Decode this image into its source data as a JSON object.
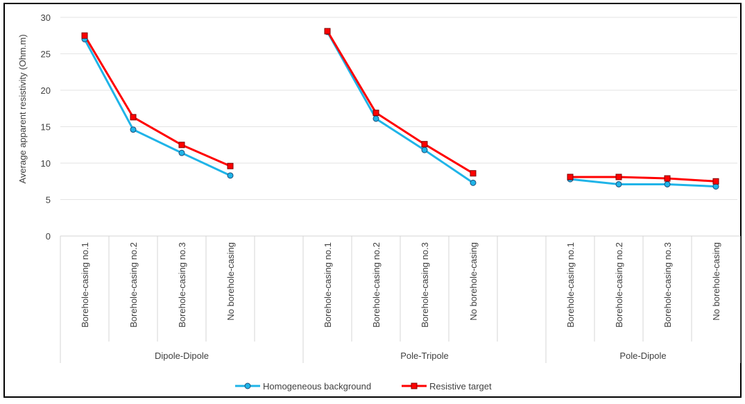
{
  "chart_data": {
    "type": "line",
    "ylabel": "Average apparent resistivity (Ohm.m)",
    "ylim": [
      0,
      30
    ],
    "yticks": [
      0,
      5,
      10,
      15,
      20,
      25,
      30
    ],
    "grid": true,
    "legend_position": "bottom-center",
    "groups": [
      {
        "name": "Dipole-Dipole",
        "categories": [
          "Borehole-casing no.1",
          "Borehole-casing no.2",
          "Borehole-casing no.3",
          "No borehole-casing"
        ]
      },
      {
        "name": "Pole-Tripole",
        "categories": [
          "Borehole-casing no.1",
          "Borehole-casing no.2",
          "Borehole-casing no.3",
          "No borehole-casing"
        ]
      },
      {
        "name": "Pole-Dipole",
        "categories": [
          "Borehole-casing no.1",
          "Borehole-casing no.2",
          "Borehole-casing no.3",
          "No borehole-casing"
        ]
      }
    ],
    "series": [
      {
        "name": "Homogeneous background",
        "color": "#1fb4e8",
        "marker": "circle",
        "values": [
          [
            27.0,
            14.6,
            11.4,
            8.3
          ],
          [
            28.0,
            16.1,
            11.8,
            7.3
          ],
          [
            7.8,
            7.1,
            7.1,
            6.8
          ]
        ]
      },
      {
        "name": "Resistive target",
        "color": "#ff0000",
        "marker": "square",
        "values": [
          [
            27.5,
            16.3,
            12.5,
            9.6
          ],
          [
            28.1,
            16.9,
            12.6,
            8.6
          ],
          [
            8.1,
            8.1,
            7.9,
            7.5
          ]
        ]
      }
    ]
  }
}
